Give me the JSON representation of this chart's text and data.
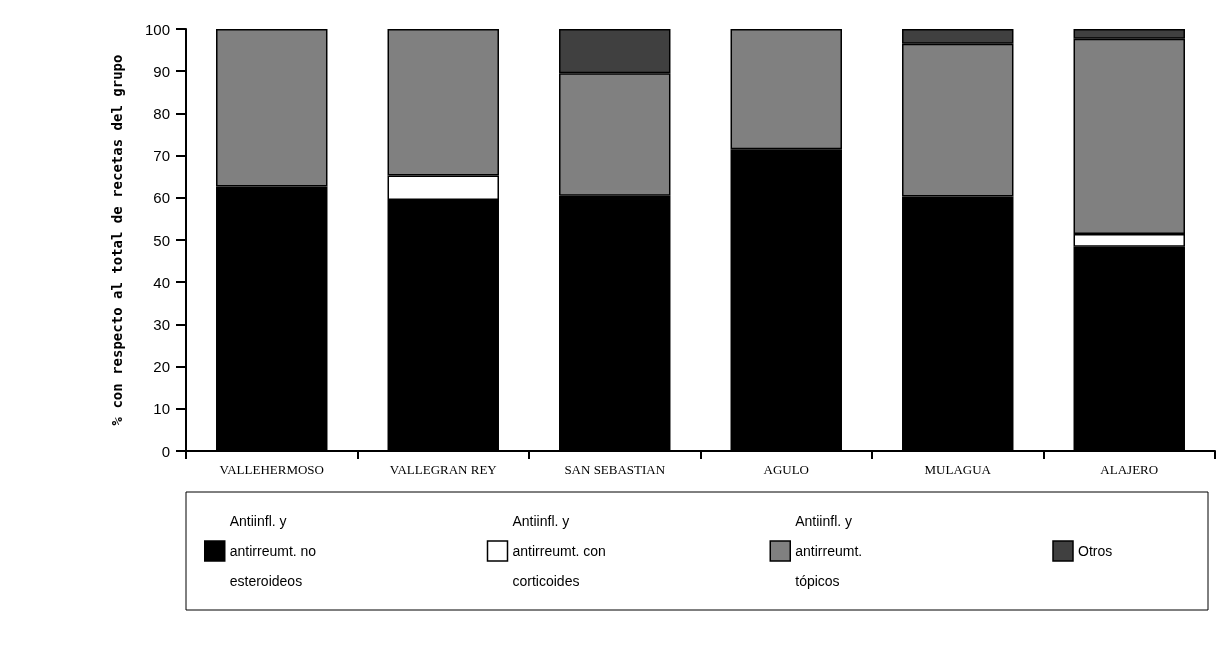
{
  "chart_data": {
    "type": "bar",
    "stacked": true,
    "ylabel": "% con respecto al total de recetas del grupo",
    "categories": [
      "VALLEHERMOSO",
      "VALLEGRAN REY",
      "SAN SEBASTIAN",
      "AGULO",
      "MULAGUA",
      "ALAJERO"
    ],
    "series": [
      {
        "name": "Antiinfl. y antirreumt. no esteroideos",
        "color": "#000000",
        "values": [
          62.7,
          59.5,
          60.5,
          71.5,
          60.3,
          48.4
        ]
      },
      {
        "name": "Antiinfl. y antirreumt. con corticoides",
        "color": "#ffffff",
        "values": [
          null,
          5.8,
          null,
          null,
          null,
          3
        ]
      },
      {
        "name": "Antiinfl. y antirreumt. tópicos",
        "color": "#808080",
        "values": [
          37.3,
          34.7,
          29,
          28.5,
          36.2,
          46.3
        ]
      },
      {
        "name": "Otros",
        "color": "#404040",
        "values": [
          null,
          null,
          10.5,
          null,
          3.5,
          2.3
        ]
      }
    ],
    "ylim": [
      0,
      100
    ],
    "yticks": [
      0,
      10,
      20,
      30,
      40,
      50,
      60,
      70,
      80,
      90,
      100
    ],
    "grid": false,
    "legend": "bottom"
  }
}
